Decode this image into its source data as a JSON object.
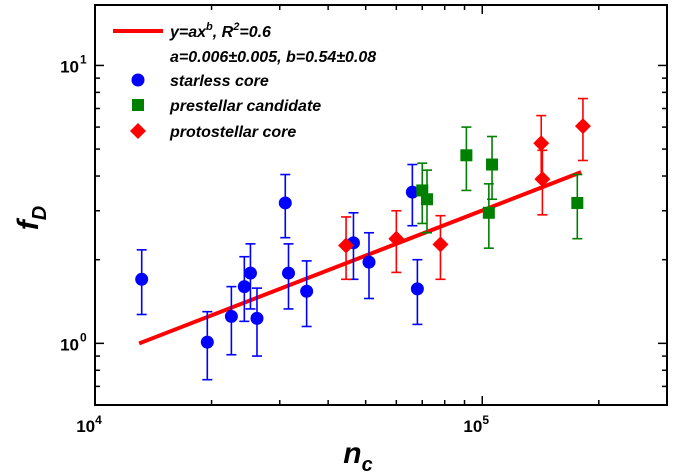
{
  "chart_data": {
    "type": "scatter",
    "x_scale": "log",
    "y_scale": "log",
    "xlim": [
      10000,
      300000
    ],
    "ylim": [
      0.6,
      16.5
    ],
    "x_ticks": [
      {
        "value": 10000,
        "base": "10",
        "exp": "4"
      },
      {
        "value": 100000,
        "base": "10",
        "exp": "5"
      }
    ],
    "y_ticks": [
      {
        "value": 1,
        "label": "10",
        "exp": "0"
      },
      {
        "value": 10,
        "label": "10",
        "exp": "1"
      }
    ],
    "xlabel": {
      "main": "n",
      "sub": "c"
    },
    "ylabel": {
      "main": "f",
      "sub": "D"
    },
    "grid": false,
    "legend_position": "top-left",
    "fit": {
      "label_main": "y=ax",
      "label_sup": "b",
      "label_r": ", R",
      "label_r_sup": "2",
      "label_r_val": "=0.6",
      "params": "a=0.006±0.005, b=0.54±0.08",
      "color": "#ff0000",
      "x_range": [
        13000,
        180000
      ],
      "a": 0.006,
      "b": 0.54
    },
    "series": [
      {
        "name": "starless core",
        "marker": "circle",
        "color": "#0000ff",
        "points": [
          {
            "x": 13200,
            "y": 1.7,
            "lo": 1.27,
            "hi": 2.17
          },
          {
            "x": 19500,
            "y": 1.01,
            "lo": 0.74,
            "hi": 1.3
          },
          {
            "x": 22500,
            "y": 1.25,
            "lo": 0.91,
            "hi": 1.6
          },
          {
            "x": 24300,
            "y": 1.6,
            "lo": 1.2,
            "hi": 2.05
          },
          {
            "x": 25200,
            "y": 1.79,
            "lo": 1.33,
            "hi": 2.28
          },
          {
            "x": 26200,
            "y": 1.23,
            "lo": 0.9,
            "hi": 1.58
          },
          {
            "x": 31000,
            "y": 3.2,
            "lo": 2.4,
            "hi": 4.05
          },
          {
            "x": 31600,
            "y": 1.79,
            "lo": 1.33,
            "hi": 2.28
          },
          {
            "x": 35200,
            "y": 1.54,
            "lo": 1.15,
            "hi": 1.98
          },
          {
            "x": 46500,
            "y": 2.3,
            "lo": 1.7,
            "hi": 2.95
          },
          {
            "x": 51000,
            "y": 1.96,
            "lo": 1.45,
            "hi": 2.5
          },
          {
            "x": 66000,
            "y": 3.5,
            "lo": 2.65,
            "hi": 4.4
          },
          {
            "x": 68000,
            "y": 1.57,
            "lo": 1.17,
            "hi": 2.0
          }
        ]
      },
      {
        "name": "prestellar candidate",
        "marker": "square",
        "color": "#008000",
        "points": [
          {
            "x": 70000,
            "y": 3.55,
            "lo": 2.7,
            "hi": 4.45
          },
          {
            "x": 72000,
            "y": 3.3,
            "lo": 2.5,
            "hi": 4.2
          },
          {
            "x": 91000,
            "y": 4.75,
            "lo": 3.55,
            "hi": 6.0
          },
          {
            "x": 104000,
            "y": 2.95,
            "lo": 2.2,
            "hi": 3.75
          },
          {
            "x": 106000,
            "y": 4.4,
            "lo": 3.3,
            "hi": 5.55
          },
          {
            "x": 176000,
            "y": 3.2,
            "lo": 2.38,
            "hi": 4.05
          }
        ]
      },
      {
        "name": "protostellar core",
        "marker": "diamond",
        "color": "#ff0000",
        "points": [
          {
            "x": 44500,
            "y": 2.25,
            "lo": 1.7,
            "hi": 2.85
          },
          {
            "x": 60000,
            "y": 2.38,
            "lo": 1.8,
            "hi": 3.0
          },
          {
            "x": 78000,
            "y": 2.27,
            "lo": 1.7,
            "hi": 2.88
          },
          {
            "x": 142000,
            "y": 5.25,
            "lo": 3.95,
            "hi": 6.6
          },
          {
            "x": 143000,
            "y": 3.9,
            "lo": 2.9,
            "hi": 4.95
          },
          {
            "x": 182000,
            "y": 6.05,
            "lo": 4.55,
            "hi": 7.6
          }
        ]
      }
    ]
  }
}
